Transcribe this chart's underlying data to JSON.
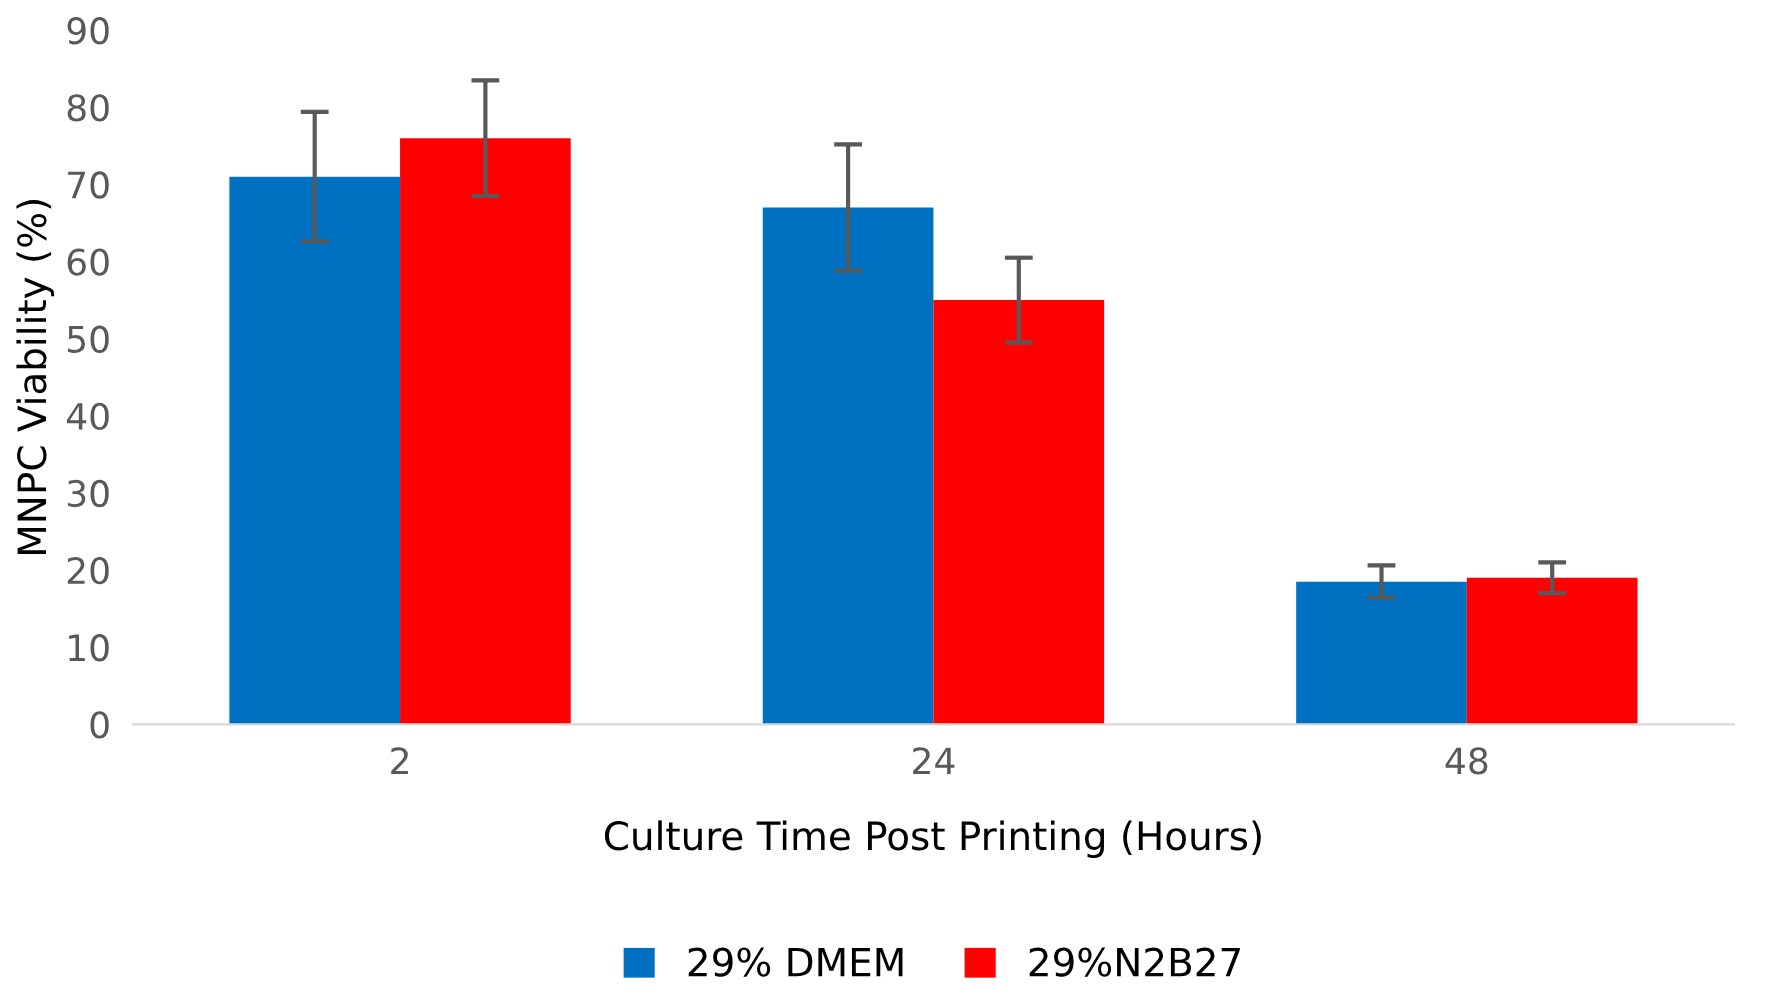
{
  "chart_data": {
    "type": "bar",
    "xlabel": "Culture Time Post Printing (Hours)",
    "ylabel": "MNPC Viability (%)",
    "categories": [
      "2",
      "24",
      "48"
    ],
    "series": [
      {
        "name": "29% DMEM",
        "color": "#0070c0",
        "values": [
          71,
          67,
          18.5
        ],
        "errors": [
          8.4,
          8.2,
          2.1
        ]
      },
      {
        "name": "29%N2B27",
        "color": "#ff0000",
        "values": [
          76,
          55,
          19
        ],
        "errors": [
          7.5,
          5.5,
          2
        ]
      }
    ],
    "ylim": [
      0,
      90
    ],
    "yticks": [
      0,
      10,
      20,
      30,
      40,
      50,
      60,
      70,
      80,
      90
    ],
    "grid": false,
    "legend": "bottom"
  }
}
